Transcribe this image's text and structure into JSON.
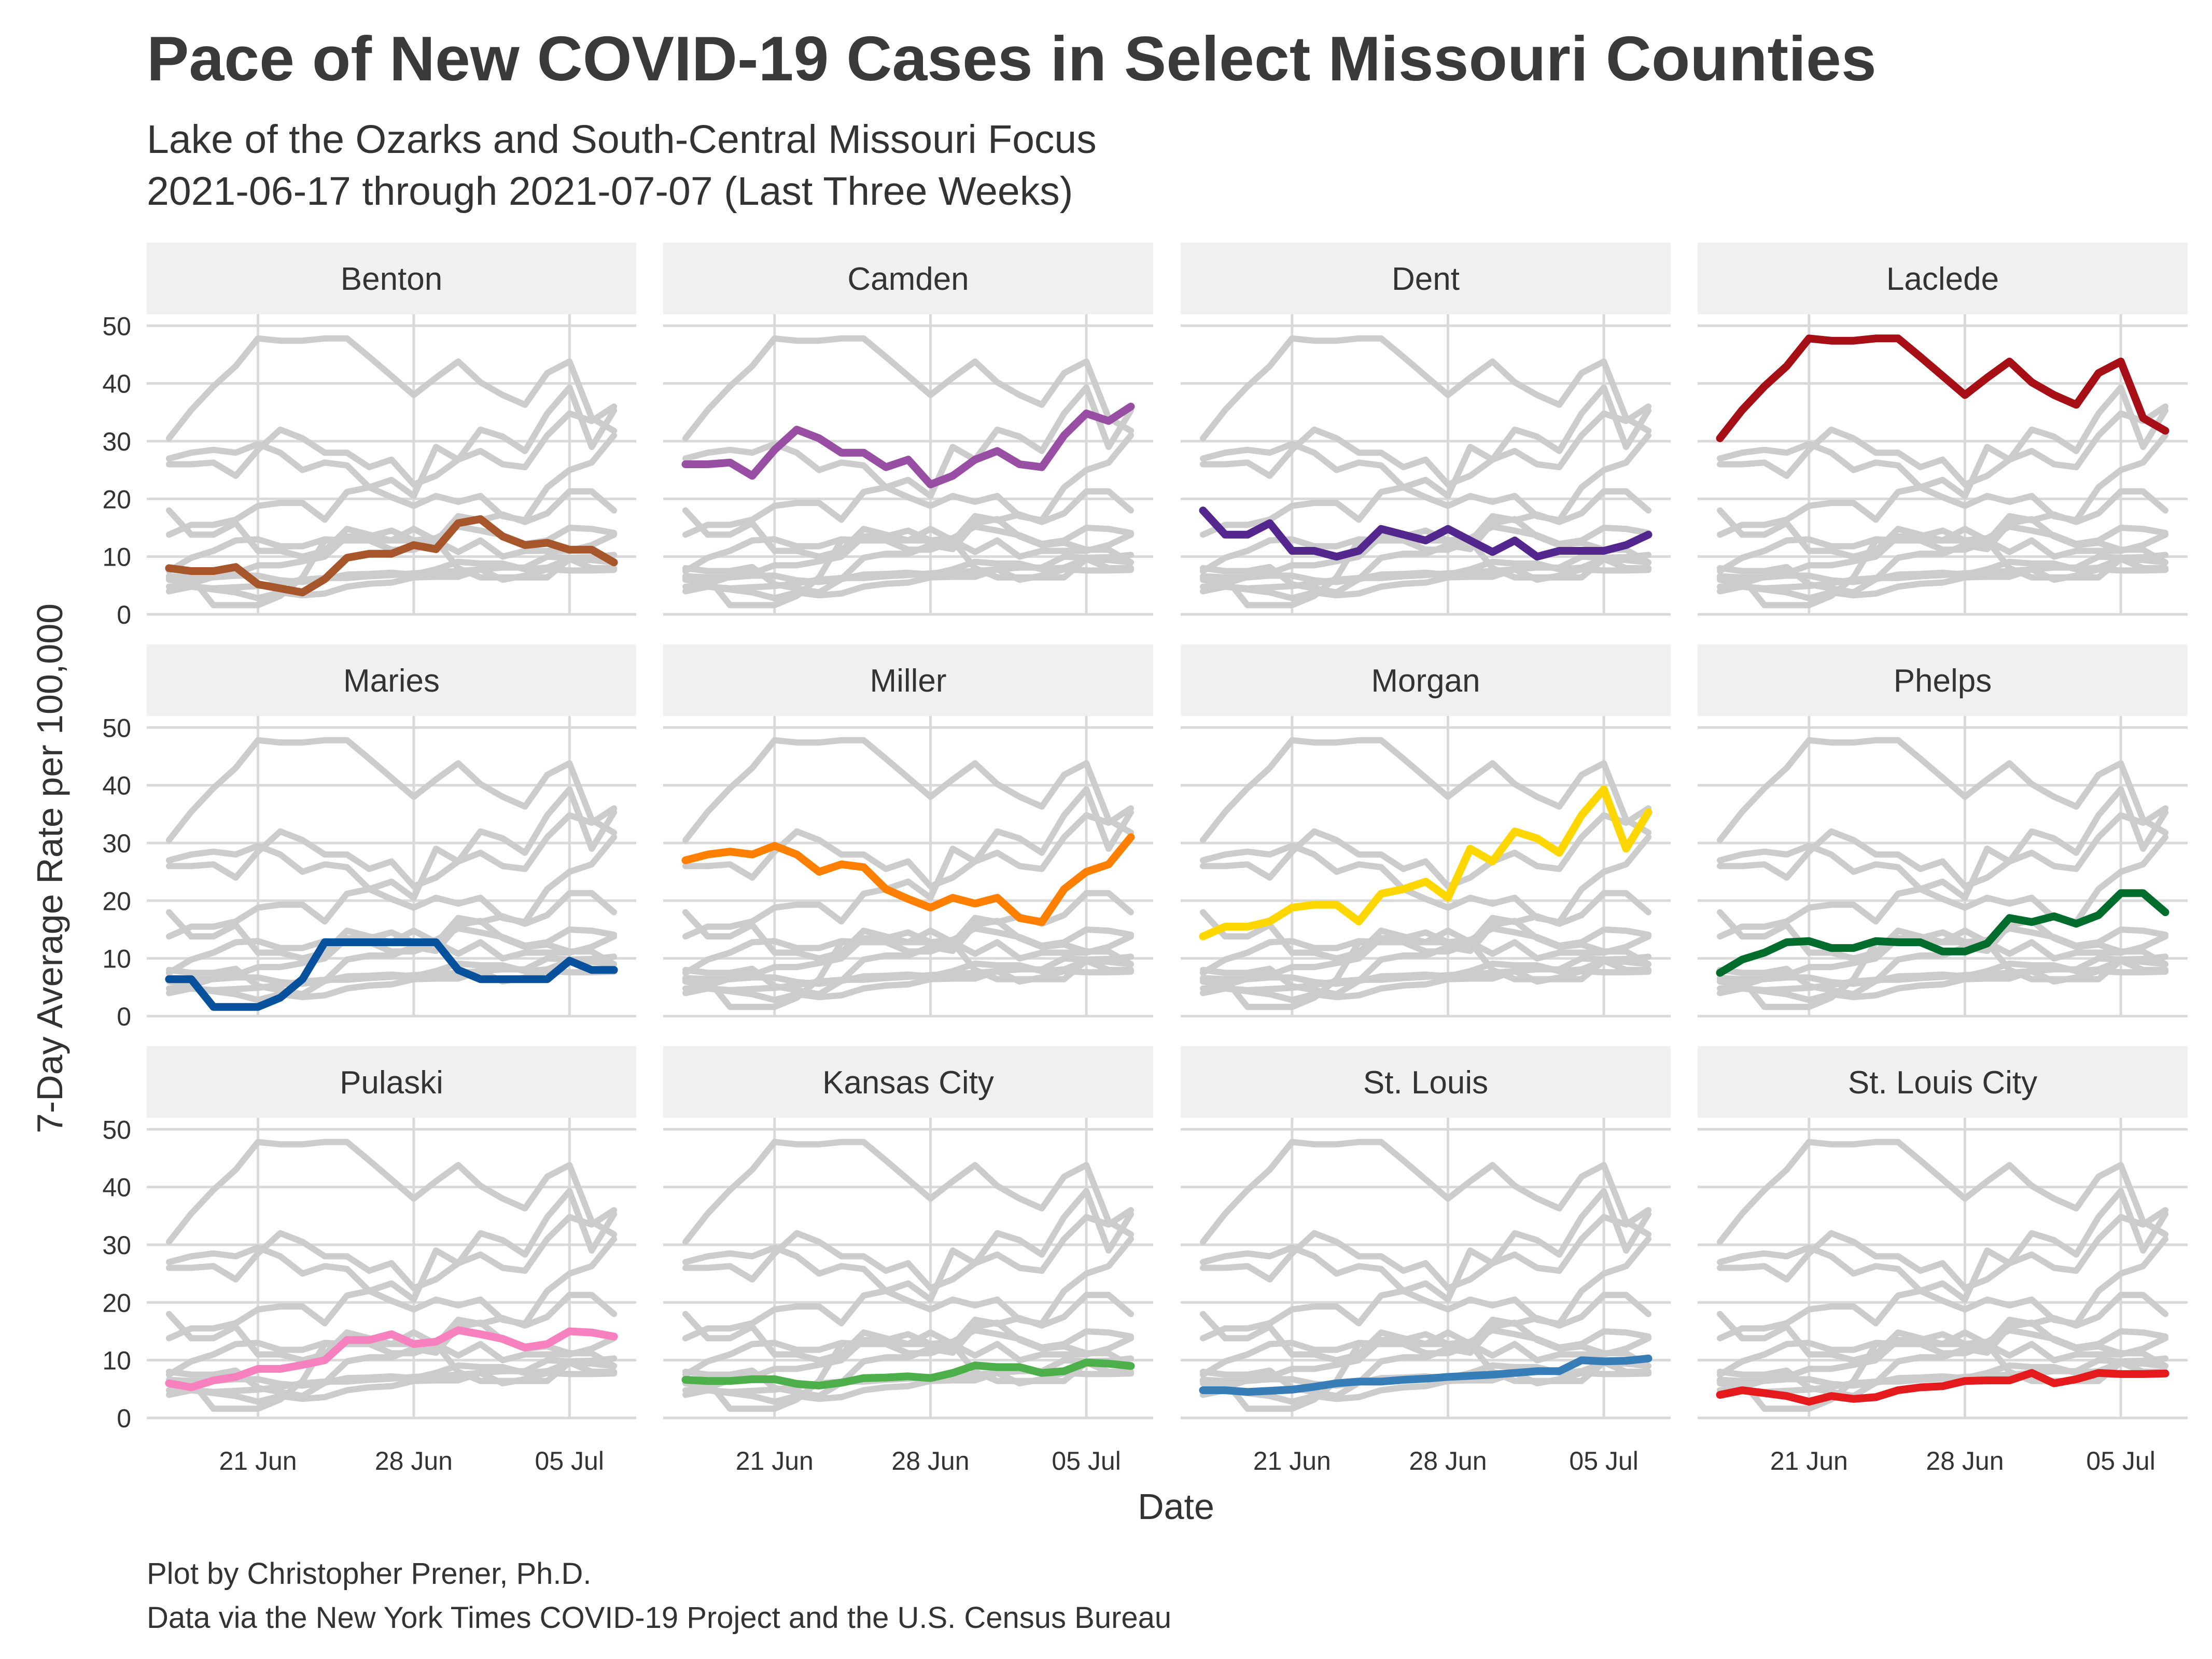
{
  "chart_data": {
    "type": "line",
    "title": "Pace of New COVID-19 Cases in Select Missouri Counties",
    "subtitle_line1": "Lake of the Ozarks and South-Central Missouri Focus",
    "subtitle_line2": "2021-06-17 through 2021-07-07 (Last Three Weeks)",
    "xlabel": "Date",
    "ylabel": "7-Day Average Rate per 100,000",
    "caption_line1": "Plot by Christopher Prener, Ph.D.",
    "caption_line2": "Data via the New York Times COVID-19 Project and the U.S. Census Bureau",
    "x_start": "2021-06-17",
    "x_end": "2021-07-07",
    "xlim": [
      "2021-06-16",
      "2021-07-08"
    ],
    "ylim": [
      0,
      52
    ],
    "y_ticks": [
      0,
      10,
      20,
      30,
      40,
      50
    ],
    "x_ticks": [
      {
        "date": "2021-06-21",
        "label": "21 Jun"
      },
      {
        "date": "2021-06-28",
        "label": "28 Jun"
      },
      {
        "date": "2021-07-05",
        "label": "05 Jul"
      }
    ],
    "grid": true,
    "background_series_color": "#cccccc",
    "series": [
      {
        "name": "Benton",
        "color": "#a6562a",
        "values": [
          8,
          7.5,
          7.5,
          8.2,
          5.2,
          4.5,
          3.8,
          6.1,
          9.8,
          10.5,
          10.5,
          12,
          11.3,
          15.8,
          16.5,
          13.5,
          12,
          12.4,
          11.2,
          11.2,
          9
        ]
      },
      {
        "name": "Camden",
        "color": "#984ea3",
        "values": [
          26,
          26,
          26.3,
          24,
          28.5,
          32,
          30.5,
          28,
          28,
          25.5,
          26.8,
          22.5,
          24,
          26.8,
          28.3,
          26,
          25.5,
          31,
          34.8,
          33.5,
          36
        ]
      },
      {
        "name": "Dent",
        "color": "#54278f",
        "values": [
          18,
          13.8,
          13.8,
          15.8,
          11,
          11,
          10,
          11,
          14.8,
          13.8,
          12.8,
          14.8,
          12.8,
          10.8,
          12.8,
          10,
          11,
          11,
          11,
          12,
          13.8
        ]
      },
      {
        "name": "Laclede",
        "color": "#a50f15",
        "values": [
          30.5,
          35.4,
          39.5,
          43,
          47.8,
          47.4,
          47.4,
          47.8,
          47.8,
          44.6,
          41.3,
          38,
          41,
          43.8,
          40.2,
          38,
          36.3,
          41.8,
          43.8,
          34,
          31.8
        ]
      },
      {
        "name": "Maries",
        "color": "#08519c",
        "values": [
          6.4,
          6.4,
          1.6,
          1.6,
          1.6,
          3.2,
          6.4,
          12.8,
          12.8,
          12.8,
          12.8,
          12.8,
          12.8,
          8,
          6.4,
          6.4,
          6.4,
          6.4,
          9.6,
          8,
          8
        ]
      },
      {
        "name": "Miller",
        "color": "#ff7f00",
        "values": [
          27,
          28,
          28.5,
          28,
          29.5,
          28,
          25,
          26.3,
          25.8,
          22,
          20.3,
          18.8,
          20.5,
          19.5,
          20.5,
          17,
          16.3,
          22,
          25,
          26.3,
          31
        ]
      },
      {
        "name": "Morgan",
        "color": "#ffd700",
        "values": [
          13.8,
          15.5,
          15.5,
          16.4,
          18.8,
          19.3,
          19.3,
          16.4,
          21.2,
          22,
          23.3,
          20.5,
          29,
          26.8,
          32,
          30.8,
          28.3,
          34.8,
          39.3,
          29,
          35.3
        ]
      },
      {
        "name": "Phelps",
        "color": "#006d2c",
        "values": [
          7.5,
          9.8,
          11,
          12.8,
          13,
          11.8,
          11.8,
          13,
          12.8,
          12.8,
          11.2,
          11.2,
          12.6,
          17,
          16.3,
          17.3,
          16,
          17.5,
          21.3,
          21.3,
          18
        ]
      },
      {
        "name": "Pulaski",
        "color": "#f781bf",
        "values": [
          6,
          5.3,
          6.5,
          7.1,
          8.5,
          8.5,
          9.2,
          10,
          13.5,
          13.5,
          14.5,
          12.8,
          13.2,
          15.2,
          14.5,
          13.7,
          12.2,
          12.8,
          15,
          14.8,
          14.1
        ]
      },
      {
        "name": "Kansas City",
        "color": "#4daf4a",
        "values": [
          6.6,
          6.4,
          6.4,
          6.7,
          6.7,
          5.9,
          5.6,
          6.1,
          6.9,
          7,
          7.2,
          6.9,
          7.8,
          9.1,
          8.8,
          8.8,
          7.8,
          8.1,
          9.6,
          9.4,
          9
        ]
      },
      {
        "name": "St. Louis",
        "color": "#377eb8",
        "values": [
          4.8,
          4.8,
          4.5,
          4.7,
          4.9,
          5.4,
          6,
          6.3,
          6.3,
          6.6,
          6.8,
          7.1,
          7.3,
          7.5,
          7.8,
          8.1,
          8.1,
          10,
          9.8,
          9.9,
          10.3
        ]
      },
      {
        "name": "St. Louis City",
        "color": "#e41a1c",
        "values": [
          4,
          4.8,
          4.3,
          3.8,
          2.8,
          3.8,
          3.3,
          3.6,
          4.8,
          5.3,
          5.5,
          6.4,
          6.5,
          6.5,
          7.8,
          6,
          6.7,
          7.8,
          7.6,
          7.6,
          7.7
        ]
      }
    ]
  }
}
